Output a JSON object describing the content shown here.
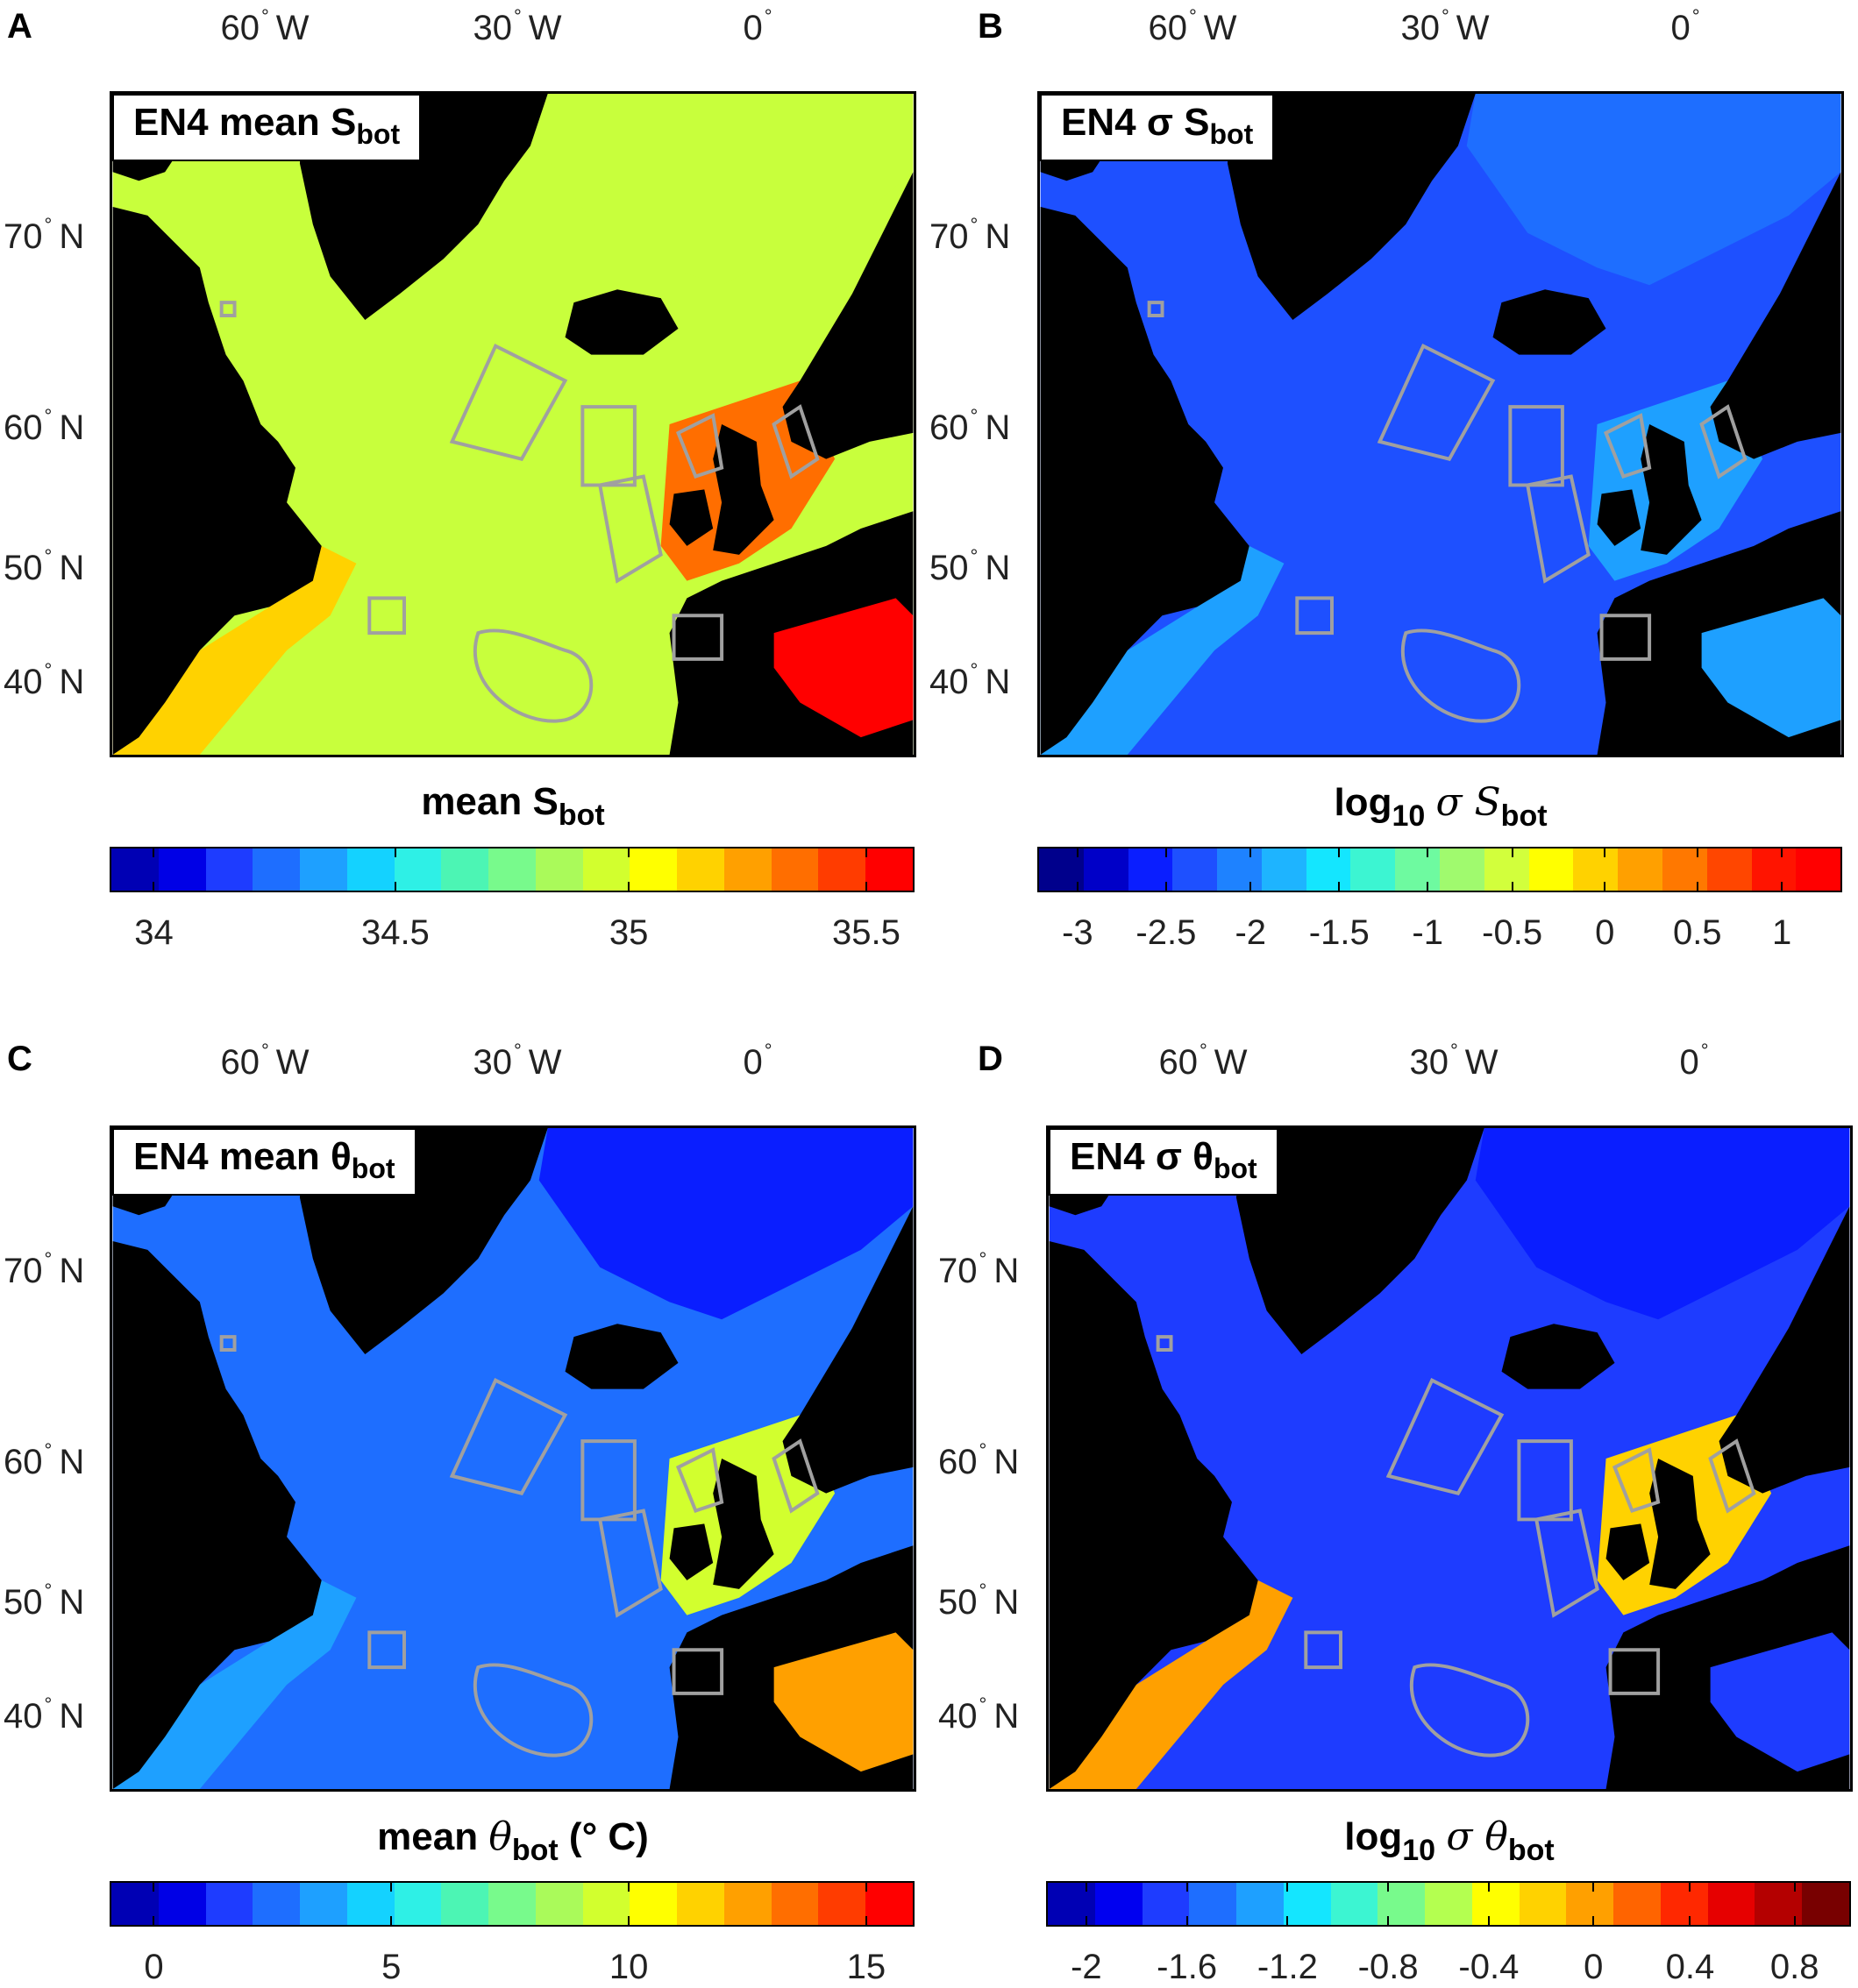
{
  "panels": [
    {
      "id": "A",
      "label": "A",
      "title": "EN4 mean S",
      "title_sub": "bot",
      "lon_labels": [
        "60",
        "30",
        "0"
      ],
      "lon_suffix": [
        "W",
        "W",
        ""
      ],
      "lat_labels": [
        "70",
        "60",
        "50",
        "40"
      ],
      "lat_suffix": "N",
      "colorbar": {
        "title_main": "mean S",
        "title_sub": "bot",
        "title_tail": "",
        "ticks": [
          "34",
          "34.5",
          "35",
          "35.5"
        ],
        "colors": [
          "#0000b4",
          "#0000e6",
          "#1e3cff",
          "#1e6eff",
          "#1ea0ff",
          "#14d2ff",
          "#2ef0e6",
          "#4cf5b4",
          "#78fa8c",
          "#aafa5a",
          "#d2ff2e",
          "#ffff00",
          "#ffd200",
          "#ffa000",
          "#ff6e00",
          "#ff3c00",
          "#ff0000"
        ],
        "ocean_color": "#c8ff3c"
      }
    },
    {
      "id": "B",
      "label": "B",
      "title": "EN4 σ S",
      "title_sub": "bot",
      "lon_labels": [
        "60",
        "30",
        "0"
      ],
      "lon_suffix": [
        "W",
        "W",
        ""
      ],
      "lat_labels": [
        "70",
        "60",
        "50",
        "40"
      ],
      "lat_suffix": "N",
      "colorbar": {
        "title_main": "log",
        "title_sub": "10",
        "title_tail": "σ S",
        "title_sub2": "bot",
        "ticks": [
          "-3",
          "-2.5",
          "-2",
          "-1.5",
          "-1",
          "-0.5",
          "0",
          "0.5",
          "1"
        ],
        "colors": [
          "#00008c",
          "#0000c8",
          "#0a1eff",
          "#1e50ff",
          "#1e82ff",
          "#1eb4ff",
          "#14e6ff",
          "#3cf5d2",
          "#6efaa0",
          "#a0fa6e",
          "#d2ff3c",
          "#ffff00",
          "#ffd200",
          "#ffa000",
          "#ff7800",
          "#ff4600",
          "#ff1400",
          "#ff0000"
        ],
        "ocean_color": "#1e50ff"
      }
    },
    {
      "id": "C",
      "label": "C",
      "title": "EN4 mean θ",
      "title_sub": "bot",
      "lon_labels": [
        "60",
        "30",
        "0"
      ],
      "lon_suffix": [
        "W",
        "W",
        ""
      ],
      "lat_labels": [
        "70",
        "60",
        "50",
        "40"
      ],
      "lat_suffix": "N",
      "colorbar": {
        "title_main": "mean ",
        "title_italic": "θ",
        "title_sub": "bot",
        "title_tail": "(° C)",
        "ticks": [
          "0",
          "5",
          "10",
          "15"
        ],
        "colors": [
          "#0000b4",
          "#0000e6",
          "#1e3cff",
          "#1e6eff",
          "#1ea0ff",
          "#14d2ff",
          "#2ef0e6",
          "#4cf5b4",
          "#78fa8c",
          "#aafa5a",
          "#d2ff2e",
          "#ffff00",
          "#ffd200",
          "#ffa000",
          "#ff6e00",
          "#ff3c00",
          "#ff0000"
        ],
        "ocean_color": "#1e6eff"
      }
    },
    {
      "id": "D",
      "label": "D",
      "title": "EN4 σ θ",
      "title_sub": "bot",
      "lon_labels": [
        "60",
        "30",
        "0"
      ],
      "lon_suffix": [
        "W",
        "W",
        ""
      ],
      "lat_labels": [
        "70",
        "60",
        "50",
        "40"
      ],
      "lat_suffix": "N",
      "colorbar": {
        "title_main": "log",
        "title_sub": "10",
        "title_tail": "σ θ",
        "title_sub2": "bot",
        "ticks": [
          "-2",
          "-1.6",
          "-1.2",
          "-0.8",
          "-0.4",
          "0",
          "0.4",
          "0.8"
        ],
        "colors": [
          "#0000b4",
          "#0000f0",
          "#1e3cff",
          "#1e6eff",
          "#1ea0ff",
          "#14e6ff",
          "#3cf5d2",
          "#78fa8c",
          "#b4ff50",
          "#ffff00",
          "#ffd200",
          "#ffa000",
          "#ff6400",
          "#ff2800",
          "#e60000",
          "#b40000",
          "#780000"
        ],
        "ocean_color": "#1e3cff"
      }
    }
  ]
}
